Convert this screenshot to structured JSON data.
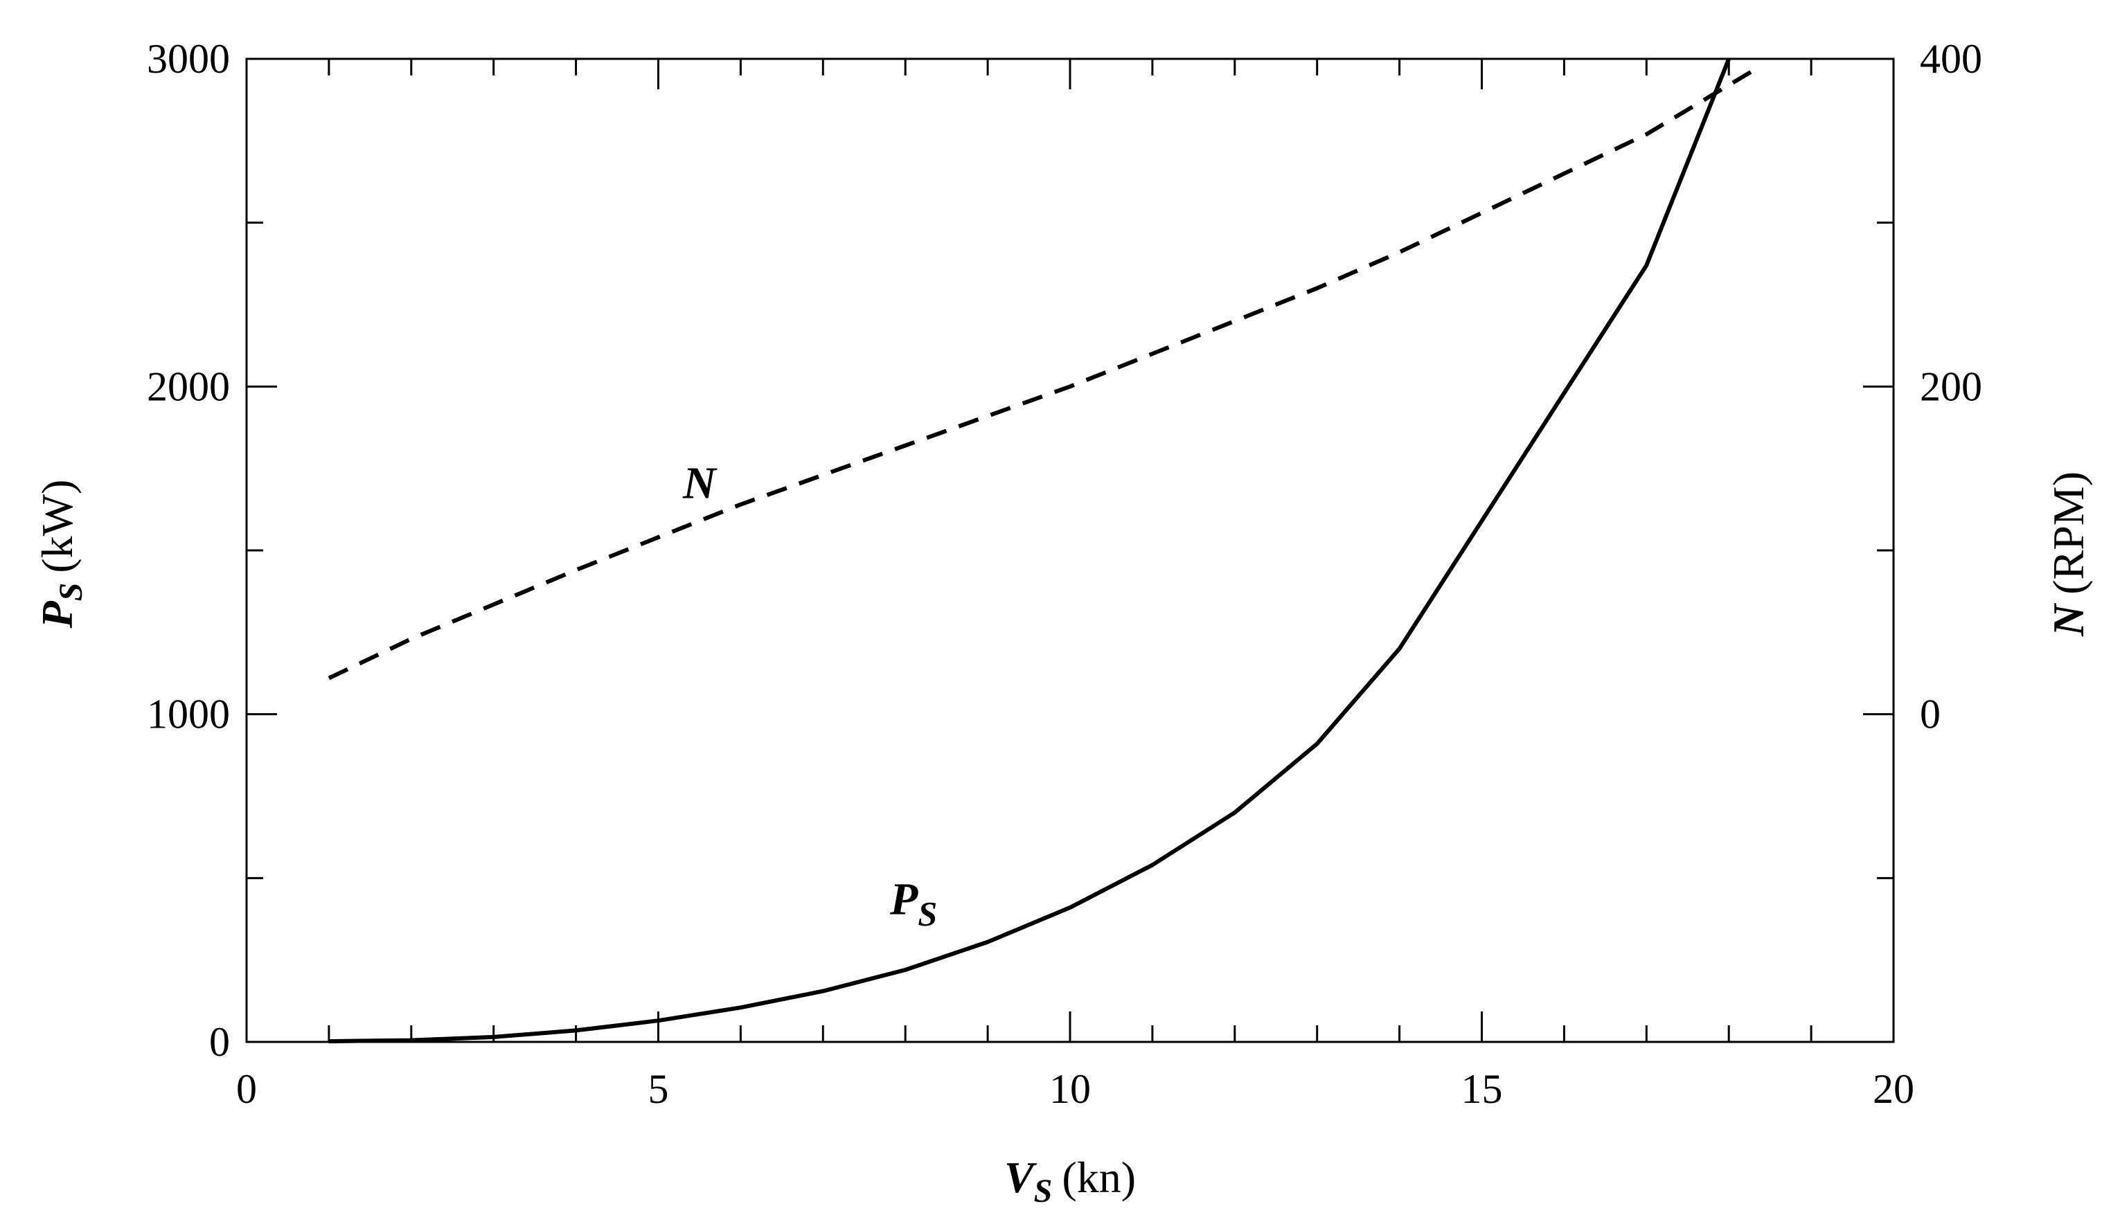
{
  "chart_data": {
    "type": "line",
    "title": "",
    "x_axis": {
      "symbol": "V",
      "subscript": "S",
      "unit": "(kn)",
      "range": [
        0,
        20
      ],
      "ticks": [
        0,
        5,
        10,
        15,
        20
      ],
      "tick_labels": [
        "0",
        "5",
        "10",
        "15",
        "20"
      ],
      "minor_step": 1
    },
    "y_axis_left": {
      "symbol": "P",
      "subscript": "S",
      "unit": "(kW)",
      "range": [
        0,
        3000
      ],
      "ticks": [
        0,
        1000,
        2000,
        3000
      ],
      "tick_labels": [
        "0",
        "1000",
        "2000",
        "3000"
      ],
      "minor_step": 500
    },
    "y_axis_right": {
      "symbol": "N",
      "unit": "(RPM)",
      "range": [
        -200,
        400
      ],
      "ticks": [
        0,
        200,
        400
      ],
      "tick_labels": [
        "0",
        "200",
        "400"
      ],
      "minor_step": 100
    },
    "grid": false,
    "legend": "none",
    "series": [
      {
        "name": "P",
        "name_subscript": "S",
        "axis": "left",
        "style": "solid",
        "color": "#000000",
        "label_at": [
          8.1,
          390
        ],
        "x": [
          1,
          2,
          3,
          4,
          5,
          6,
          7,
          8,
          9,
          10,
          11,
          12,
          13,
          14,
          15,
          16,
          17,
          18
        ],
        "y": [
          2,
          5,
          15,
          35,
          65,
          105,
          155,
          220,
          305,
          410,
          540,
          700,
          910,
          1200,
          1590,
          1980,
          2370,
          3000
        ]
      },
      {
        "name": "N",
        "axis": "right",
        "style": "dashed",
        "color": "#000000",
        "label_at": [
          5.5,
          132
        ],
        "x": [
          1,
          2,
          3,
          4,
          5,
          6,
          7,
          8,
          9,
          10,
          11,
          12,
          13,
          14,
          15,
          16,
          17,
          18.3
        ],
        "y": [
          22,
          46,
          67,
          88,
          108,
          128,
          146,
          164,
          182,
          200,
          220,
          240,
          260,
          282,
          306,
          330,
          354,
          393
        ]
      }
    ]
  }
}
